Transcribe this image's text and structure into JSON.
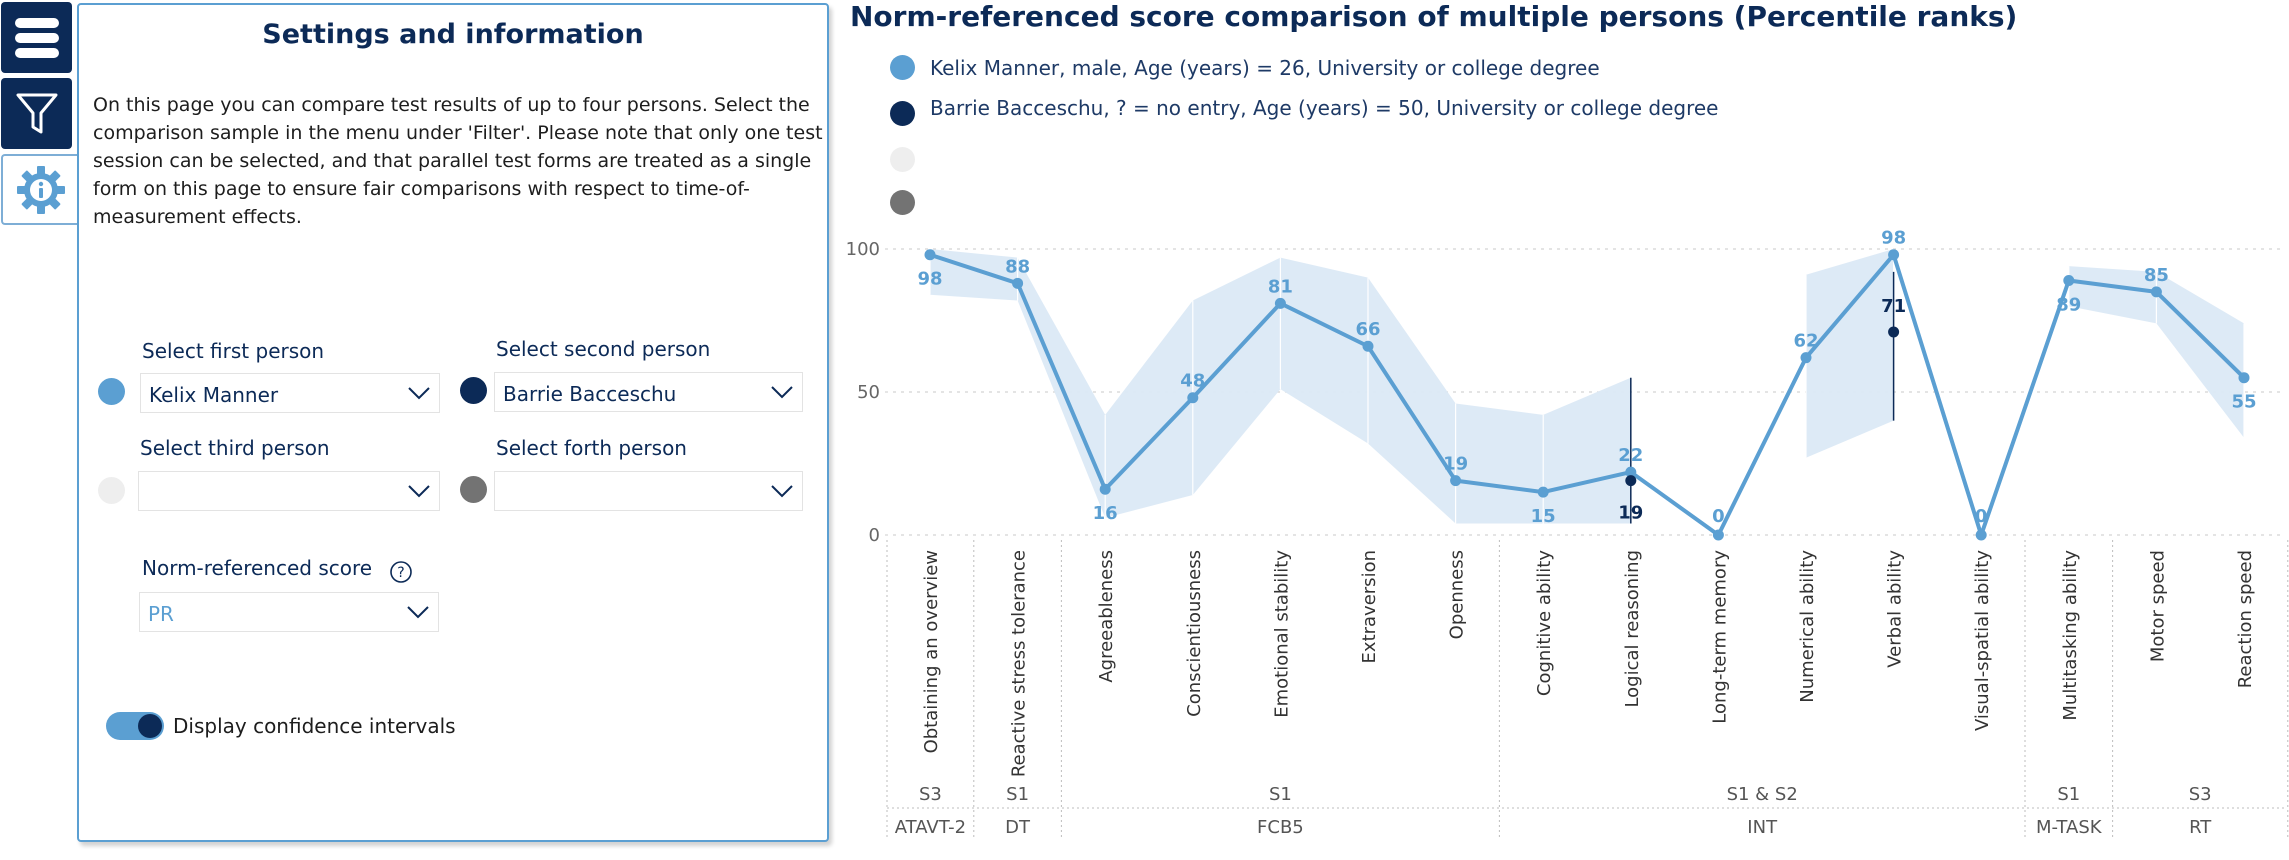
{
  "sidebar": {
    "buttons": [
      {
        "name": "menu",
        "icon": "hamburger-menu-icon"
      },
      {
        "name": "filter",
        "icon": "filter-funnel-icon"
      },
      {
        "name": "info",
        "icon": "gear-info-icon"
      }
    ]
  },
  "settings": {
    "title": "Settings and information",
    "description": "On this page you can compare test results of up to four persons. Select the comparison sample in the menu under 'Filter'. Please note that only one test session can be selected, and that parallel test forms are treated as a single form on this page to ensure fair comparisons with respect to time-of-measurement effects.",
    "first_person_label": "Select first person",
    "first_person_value": "Kelix Manner",
    "second_person_label": "Select second person",
    "second_person_value": "Barrie Bacceschu",
    "third_person_label": "Select third person",
    "third_person_value": "",
    "fourth_person_label": "Select forth person",
    "fourth_person_value": "",
    "norm_label": "Norm-referenced score",
    "norm_help_icon": "question-circle-icon",
    "norm_value": "PR",
    "ci_toggle_label": "Display confidence intervals",
    "ci_toggle_on": true
  },
  "colors": {
    "person1": "#5b9fd2",
    "person2": "#0c2a57",
    "person3": "#eeeeee",
    "person4": "#737373",
    "navy": "#0c2a57",
    "ci1": "#dbe9f6",
    "ci2": "#b9c3d2"
  },
  "chart_data": {
    "type": "line",
    "title": "Norm-referenced score comparison of multiple persons (Percentile ranks)",
    "legend": [
      "Kelix Manner, male, Age (years) = 26, University or college degree",
      "Barrie Bacceschu, ? = no entry, Age (years) = 50, University or college degree",
      "",
      ""
    ],
    "ylim": [
      0,
      100
    ],
    "yticks": [
      0,
      50,
      100
    ],
    "categories": [
      "Obtaining an overview",
      "Reactive stress tolerance",
      "Agreeableness",
      "Conscientiousness",
      "Emotional stability",
      "Extraversion",
      "Openness",
      "Cognitive ability",
      "Logical reasoning",
      "Long-term memory",
      "Numerical ability",
      "Verbal ability",
      "Visual-spatial ability",
      "Multitasking ability",
      "Motor speed",
      "Reaction speed"
    ],
    "series": [
      {
        "name": "Kelix Manner",
        "values": [
          98,
          88,
          16,
          48,
          81,
          66,
          19,
          15,
          22,
          0,
          62,
          98,
          0,
          89,
          85,
          55
        ],
        "labels": [
          "98",
          "88",
          "16",
          "48",
          "81",
          "66",
          "19",
          "15",
          "22",
          "0",
          "62",
          "98",
          "0",
          "89",
          "85",
          "55"
        ],
        "ci_low": [
          84,
          82,
          6,
          14,
          51,
          32,
          4,
          4,
          4,
          null,
          27,
          40,
          null,
          80,
          74,
          34
        ],
        "ci_high": [
          100,
          97,
          42,
          82,
          97,
          90,
          46,
          42,
          55,
          null,
          91,
          100,
          null,
          94,
          92,
          74
        ]
      },
      {
        "name": "Barrie Bacceschu",
        "values": [
          null,
          null,
          null,
          null,
          null,
          null,
          null,
          null,
          19,
          null,
          null,
          71,
          null,
          null,
          null,
          null
        ],
        "labels": [
          "",
          "",
          "",
          "",
          "",
          "",
          "",
          "",
          "19",
          "",
          "",
          "71",
          "",
          "",
          "",
          ""
        ],
        "ci_low": [
          null,
          null,
          null,
          null,
          null,
          null,
          null,
          null,
          4,
          null,
          null,
          40,
          null,
          null,
          null,
          null
        ],
        "ci_high": [
          null,
          null,
          null,
          null,
          null,
          null,
          null,
          null,
          55,
          null,
          null,
          92,
          null,
          null,
          null,
          null
        ]
      }
    ],
    "groups_row1": [
      "S3",
      "S1",
      "S1",
      "S1 & S2",
      "S1",
      "S3"
    ],
    "groups_row2": [
      "ATAVT-2",
      "DT",
      "FCB5",
      "INT",
      "M-TASK",
      "RT"
    ]
  }
}
